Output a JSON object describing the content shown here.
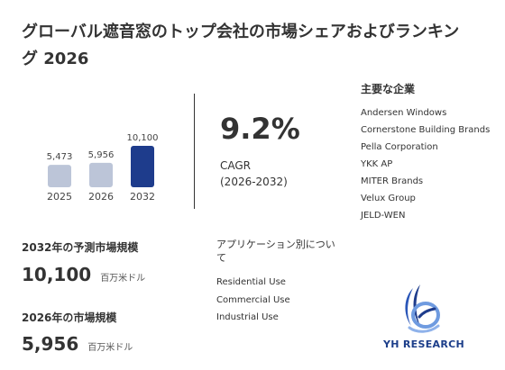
{
  "title": "グローバル遮音窓のトップ会社の市場シェアおよびランキング 2026",
  "chart_data": {
    "type": "bar",
    "categories": [
      "2025",
      "2026",
      "2032"
    ],
    "values": [
      5473,
      5956,
      10100
    ],
    "value_labels": [
      "5,473",
      "5,956",
      "10,100"
    ],
    "colors": [
      "#bcc5d8",
      "#bcc5d8",
      "#1e3c8c"
    ]
  },
  "cagr": {
    "value": "9.2%",
    "label": "CAGR",
    "period": "(2026-2032)"
  },
  "companies": {
    "heading": "主要な企業",
    "items": [
      "Andersen Windows",
      "Cornerstone Building Brands",
      "Pella Corporation",
      "YKK AP",
      "MITER Brands",
      "Velux Group",
      "JELD-WEN"
    ]
  },
  "forecast": {
    "label": "2032年の予測市場規模",
    "value": "10,100",
    "unit": "百万米ドル"
  },
  "current": {
    "label": "2026年の市場規模",
    "value": "5,956",
    "unit": "百万米ドル"
  },
  "applications": {
    "heading": "アプリケーション別について",
    "items": [
      "Residential Use",
      "Commercial Use",
      "Industrial Use"
    ]
  },
  "logo": {
    "text": "YH RESEARCH"
  }
}
